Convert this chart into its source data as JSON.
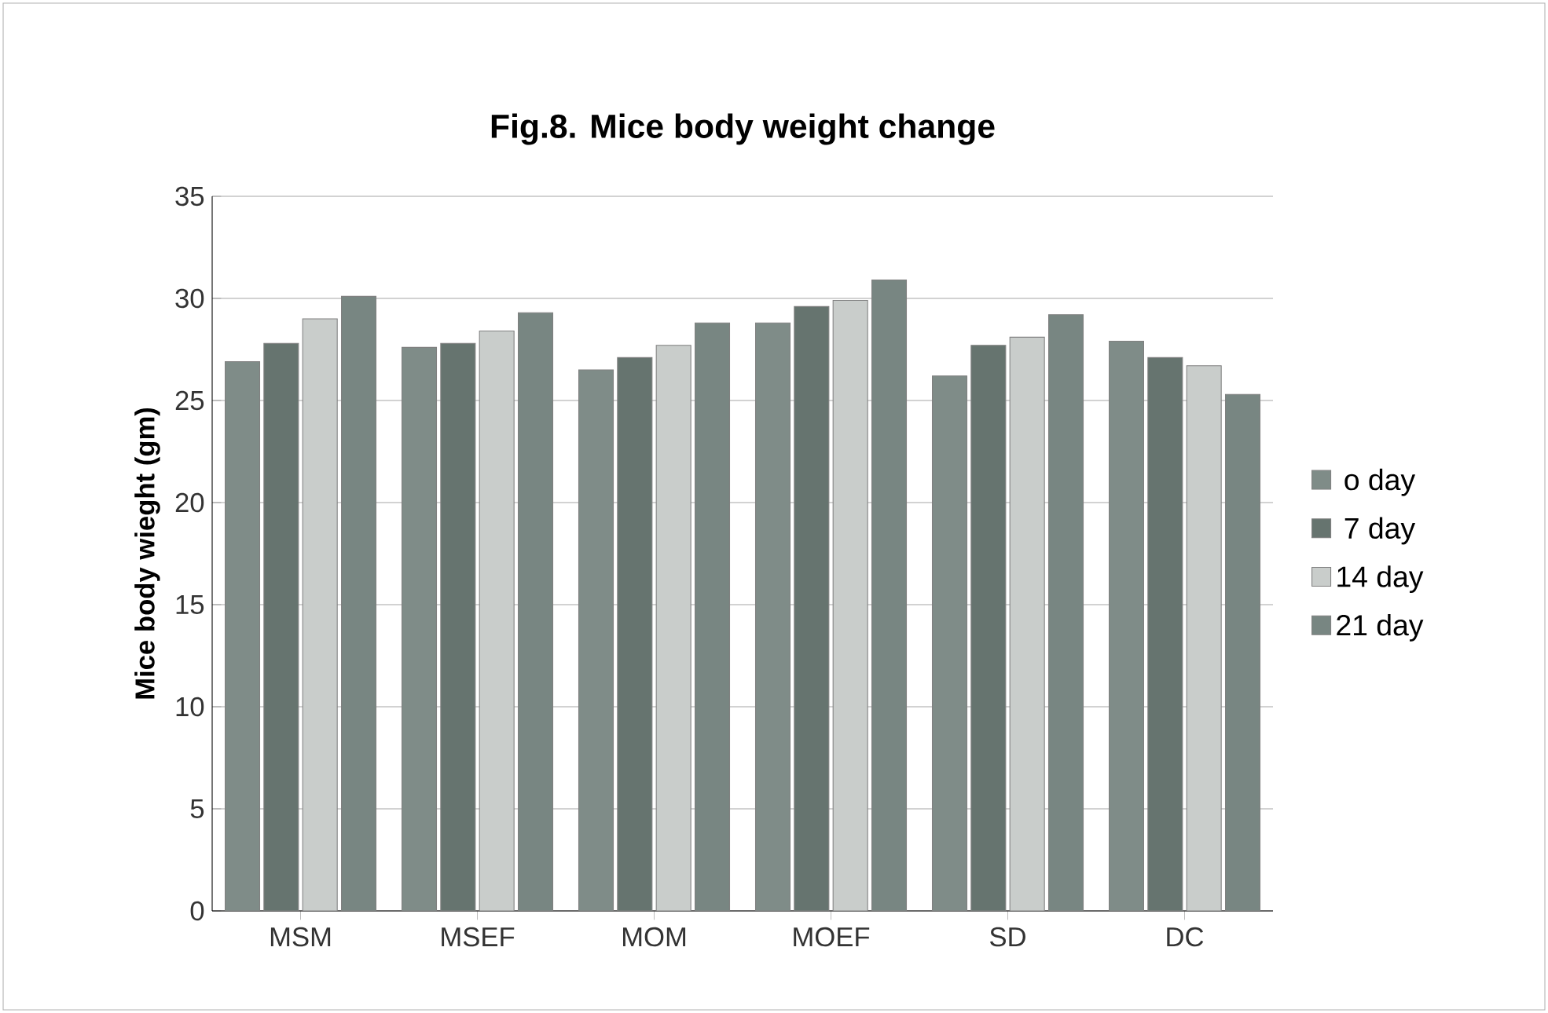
{
  "chart_data": {
    "type": "bar",
    "title": "Fig.8. Mice body weight change",
    "ylabel": "Mice body wieght (gm)",
    "categories": [
      "MSM",
      "MSEF",
      "MOM",
      "MOEF",
      "SD",
      "DC"
    ],
    "series": [
      {
        "name": "o day",
        "color": "#7f8c88",
        "values": [
          26.9,
          27.6,
          26.5,
          28.8,
          26.2,
          27.9
        ]
      },
      {
        "name": "7 day",
        "color": "#66746f",
        "values": [
          27.8,
          27.8,
          27.1,
          29.6,
          27.7,
          27.1
        ]
      },
      {
        "name": "14 day",
        "color": "#c9cdcb",
        "values": [
          29.0,
          28.4,
          27.7,
          29.9,
          28.1,
          26.7
        ]
      },
      {
        "name": "21 day",
        "color": "#788682",
        "values": [
          30.1,
          29.3,
          28.8,
          30.9,
          29.2,
          25.3
        ]
      }
    ],
    "ylim": [
      0,
      35
    ],
    "yticks": [
      0,
      5,
      10,
      15,
      20,
      25,
      30,
      35
    ],
    "grid": "y",
    "legend": "right"
  }
}
